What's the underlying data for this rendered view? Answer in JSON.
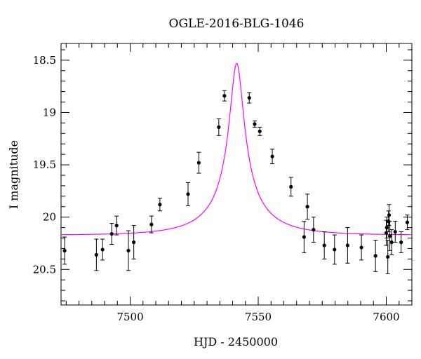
{
  "chart_data": {
    "type": "scatter",
    "title": "OGLE-2016-BLG-1046",
    "xlabel": "HJD - 2450000",
    "ylabel": "I magnitude",
    "xlim": [
      7473,
      7610
    ],
    "ylim": [
      20.84,
      18.34
    ],
    "y_inverted": true,
    "x_ticks": [
      7500,
      7550,
      7600
    ],
    "x_tick_labels": [
      "7500",
      "7550",
      "7600"
    ],
    "y_ticks": [
      18.5,
      19,
      19.5,
      20,
      20.5
    ],
    "y_tick_labels": [
      "18.5",
      "19",
      "19.5",
      "20",
      "20.5"
    ],
    "grid": false,
    "legend": "none",
    "colors": {
      "data": "#000000",
      "model": "#ff00ff"
    },
    "series": [
      {
        "type": "scatter",
        "points": [
          {
            "x": 7474.4,
            "y": 20.32,
            "err": 0.13
          },
          {
            "x": 7486.8,
            "y": 20.36,
            "err": 0.15
          },
          {
            "x": 7489.2,
            "y": 20.31,
            "err": 0.1
          },
          {
            "x": 7492.8,
            "y": 20.16,
            "err": 0.1
          },
          {
            "x": 7494.7,
            "y": 20.08,
            "err": 0.09
          },
          {
            "x": 7499.3,
            "y": 20.32,
            "err": 0.19
          },
          {
            "x": 7501.4,
            "y": 20.24,
            "err": 0.16
          },
          {
            "x": 7508.3,
            "y": 20.07,
            "err": 0.08
          },
          {
            "x": 7511.6,
            "y": 19.88,
            "err": 0.06
          },
          {
            "x": 7522.6,
            "y": 19.78,
            "err": 0.11
          },
          {
            "x": 7526.8,
            "y": 19.48,
            "err": 0.1
          },
          {
            "x": 7534.6,
            "y": 19.14,
            "err": 0.08
          },
          {
            "x": 7536.8,
            "y": 18.84,
            "err": 0.05
          },
          {
            "x": 7546.5,
            "y": 18.86,
            "err": 0.05
          },
          {
            "x": 7548.6,
            "y": 19.11,
            "err": 0.03
          },
          {
            "x": 7550.6,
            "y": 19.18,
            "err": 0.04
          },
          {
            "x": 7555.5,
            "y": 19.42,
            "err": 0.07
          },
          {
            "x": 7562.8,
            "y": 19.71,
            "err": 0.09
          },
          {
            "x": 7567.9,
            "y": 20.19,
            "err": 0.15
          },
          {
            "x": 7569.2,
            "y": 19.9,
            "err": 0.12
          },
          {
            "x": 7571.6,
            "y": 20.12,
            "err": 0.12
          },
          {
            "x": 7575.8,
            "y": 20.27,
            "err": 0.13
          },
          {
            "x": 7579.8,
            "y": 20.31,
            "err": 0.14
          },
          {
            "x": 7584.9,
            "y": 20.27,
            "err": 0.17
          },
          {
            "x": 7590.3,
            "y": 20.29,
            "err": 0.12
          },
          {
            "x": 7595.8,
            "y": 20.37,
            "err": 0.15
          },
          {
            "x": 7600.0,
            "y": 20.15,
            "err": 0.12
          },
          {
            "x": 7600.2,
            "y": 20.1,
            "err": 0.1
          },
          {
            "x": 7600.6,
            "y": 20.38,
            "err": 0.16
          },
          {
            "x": 7600.9,
            "y": 20.04,
            "err": 0.1
          },
          {
            "x": 7601.1,
            "y": 19.98,
            "err": 0.1
          },
          {
            "x": 7601.4,
            "y": 20.18,
            "err": 0.14
          },
          {
            "x": 7602.1,
            "y": 20.24,
            "err": 0.12
          },
          {
            "x": 7603.5,
            "y": 20.14,
            "err": 0.1
          },
          {
            "x": 7605.8,
            "y": 20.24,
            "err": 0.1
          },
          {
            "x": 7608.2,
            "y": 20.05,
            "err": 0.07
          }
        ]
      },
      {
        "type": "line",
        "model": "Paczynski",
        "t0": 7541.6,
        "tE": 23,
        "u0": 0.125,
        "baseline": 20.172,
        "peak": 18.53
      }
    ]
  }
}
